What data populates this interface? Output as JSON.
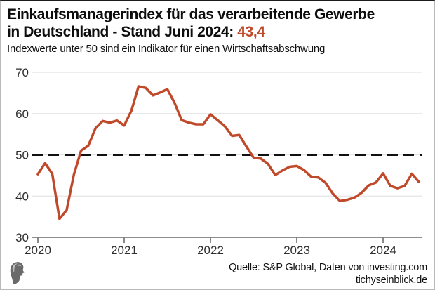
{
  "header": {
    "title_line1": "Einkaufsmanagerindex für das verarbeitende Gewerbe",
    "title_line2_prefix": "in Deutschland - Stand Juni 2024: ",
    "title_value": "43,4",
    "subtitle": "Indexwerte unter 50 sind ein Indikator für einen Wirtschaftsabschwung"
  },
  "footer": {
    "source_line1": "Quelle: S&P Global, Daten von investing.com",
    "source_line2": "tichyseinblick.de",
    "logo_name": "tichys-einblick-head-logo"
  },
  "colors": {
    "line": "#c0492a",
    "accent": "#c0492a",
    "grid": "#e4e4e4",
    "reference": "#111111",
    "axis": "#7d7d7d",
    "tick_text": "#2e2e2e",
    "logo": "#6a6a6a"
  },
  "chart_data": {
    "type": "line",
    "title": "Einkaufsmanagerindex für das verarbeitende Gewerbe in Deutschland",
    "x_unit": "month",
    "start": "2020-01",
    "end": "2024-06",
    "x_tick_labels": [
      "2020",
      "2021",
      "2022",
      "2023",
      "2024"
    ],
    "y_ticks": [
      30,
      40,
      50,
      60,
      70
    ],
    "ylim": [
      30,
      72
    ],
    "reference_line": 50,
    "grid": true,
    "legend": false,
    "series": [
      {
        "name": "PMI verarbeitendes Gewerbe Deutschland",
        "values": [
          45.3,
          48.0,
          45.4,
          34.5,
          36.6,
          45.2,
          51.0,
          52.2,
          56.4,
          58.2,
          57.8,
          58.3,
          57.1,
          60.7,
          66.6,
          66.2,
          64.4,
          65.1,
          65.9,
          62.6,
          58.4,
          57.8,
          57.4,
          57.4,
          59.8,
          58.4,
          56.9,
          54.6,
          54.8,
          52.0,
          49.3,
          49.1,
          47.8,
          45.1,
          46.2,
          47.1,
          47.3,
          46.3,
          44.7,
          44.5,
          43.2,
          40.6,
          38.8,
          39.1,
          39.6,
          40.8,
          42.6,
          43.3,
          45.5,
          42.5,
          41.9,
          42.5,
          45.4,
          43.4
        ]
      }
    ]
  }
}
